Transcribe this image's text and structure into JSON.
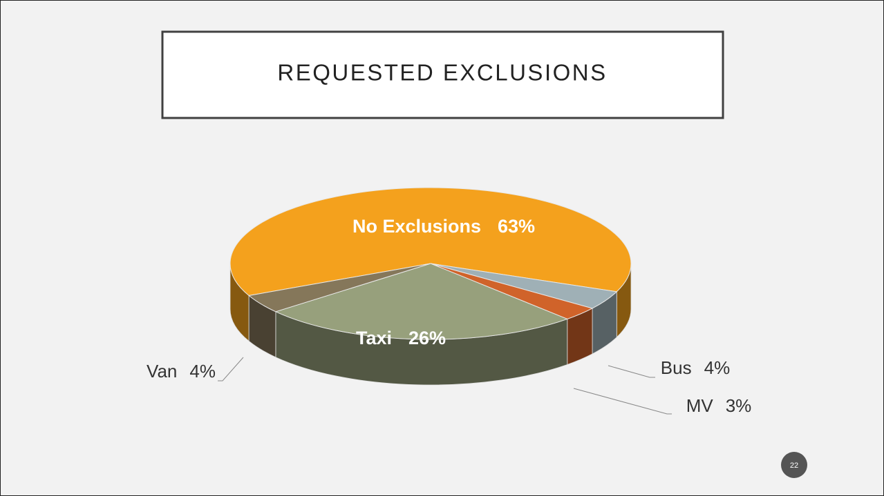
{
  "chart_data": {
    "type": "pie3d",
    "title": "REQUESTED EXCLUSIONS",
    "categories": [
      "No Exclusions",
      "Bus",
      "MV",
      "Taxi",
      "Van"
    ],
    "values": [
      63,
      4,
      3,
      26,
      4
    ],
    "value_labels": [
      "63%",
      "4%",
      "3%",
      "26%",
      "4%"
    ],
    "colors": [
      "#f4a11d",
      "#9fb0b6",
      "#d0632a",
      "#97a07c",
      "#85775a"
    ]
  },
  "page_number": "22"
}
